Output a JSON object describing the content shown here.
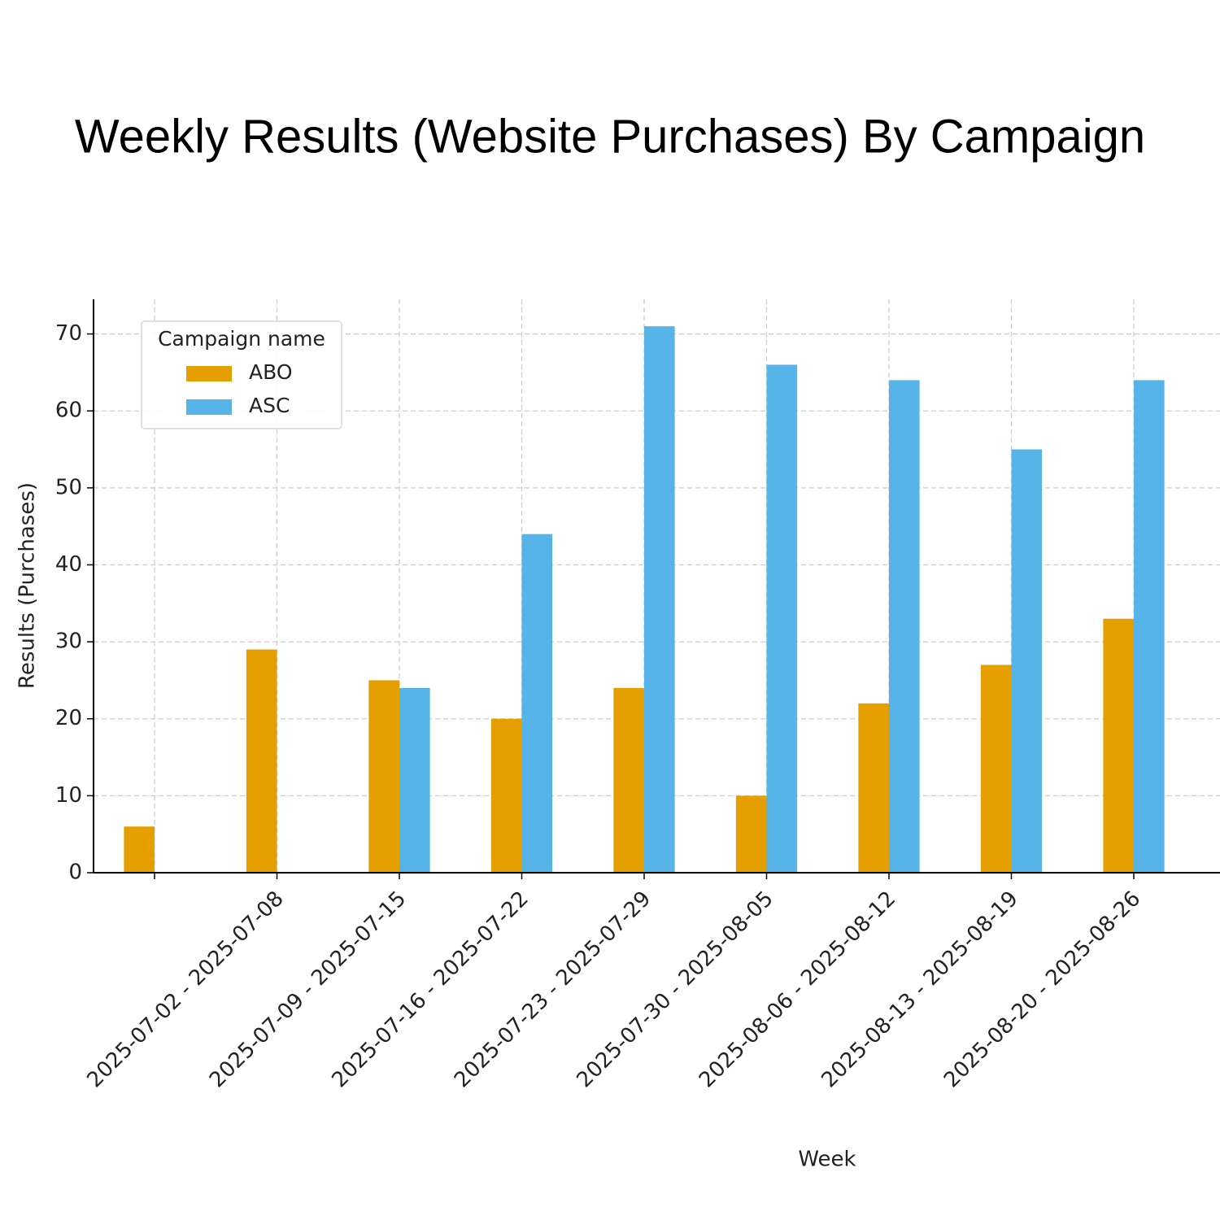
{
  "chart_data": {
    "type": "bar",
    "title": "Weekly Results (Website Purchases) By Campaign",
    "x_label": "Week",
    "y_label": "Results (Purchases)",
    "categories": [
      null,
      "2025-07-02 - 2025-07-08",
      "2025-07-09 - 2025-07-15",
      "2025-07-16 - 2025-07-22",
      "2025-07-23 - 2025-07-29",
      "2025-07-30 - 2025-08-05",
      "2025-08-06 - 2025-08-12",
      "2025-08-13 - 2025-08-19",
      "2025-08-20 - 2025-08-26"
    ],
    "series": [
      {
        "name": "ABO",
        "color": "#e69f00",
        "values": [
          6,
          29,
          25,
          20,
          24,
          10,
          22,
          27,
          33
        ]
      },
      {
        "name": "ASC",
        "color": "#56b4e9",
        "values": [
          null,
          null,
          24,
          44,
          71,
          66,
          64,
          55,
          64
        ]
      }
    ],
    "legend_title": "Campaign name",
    "legend": "upper left",
    "ylim": [
      0,
      74.5
    ],
    "yticks": [
      0,
      10,
      20,
      30,
      40,
      50,
      60,
      70
    ],
    "grid": true
  }
}
